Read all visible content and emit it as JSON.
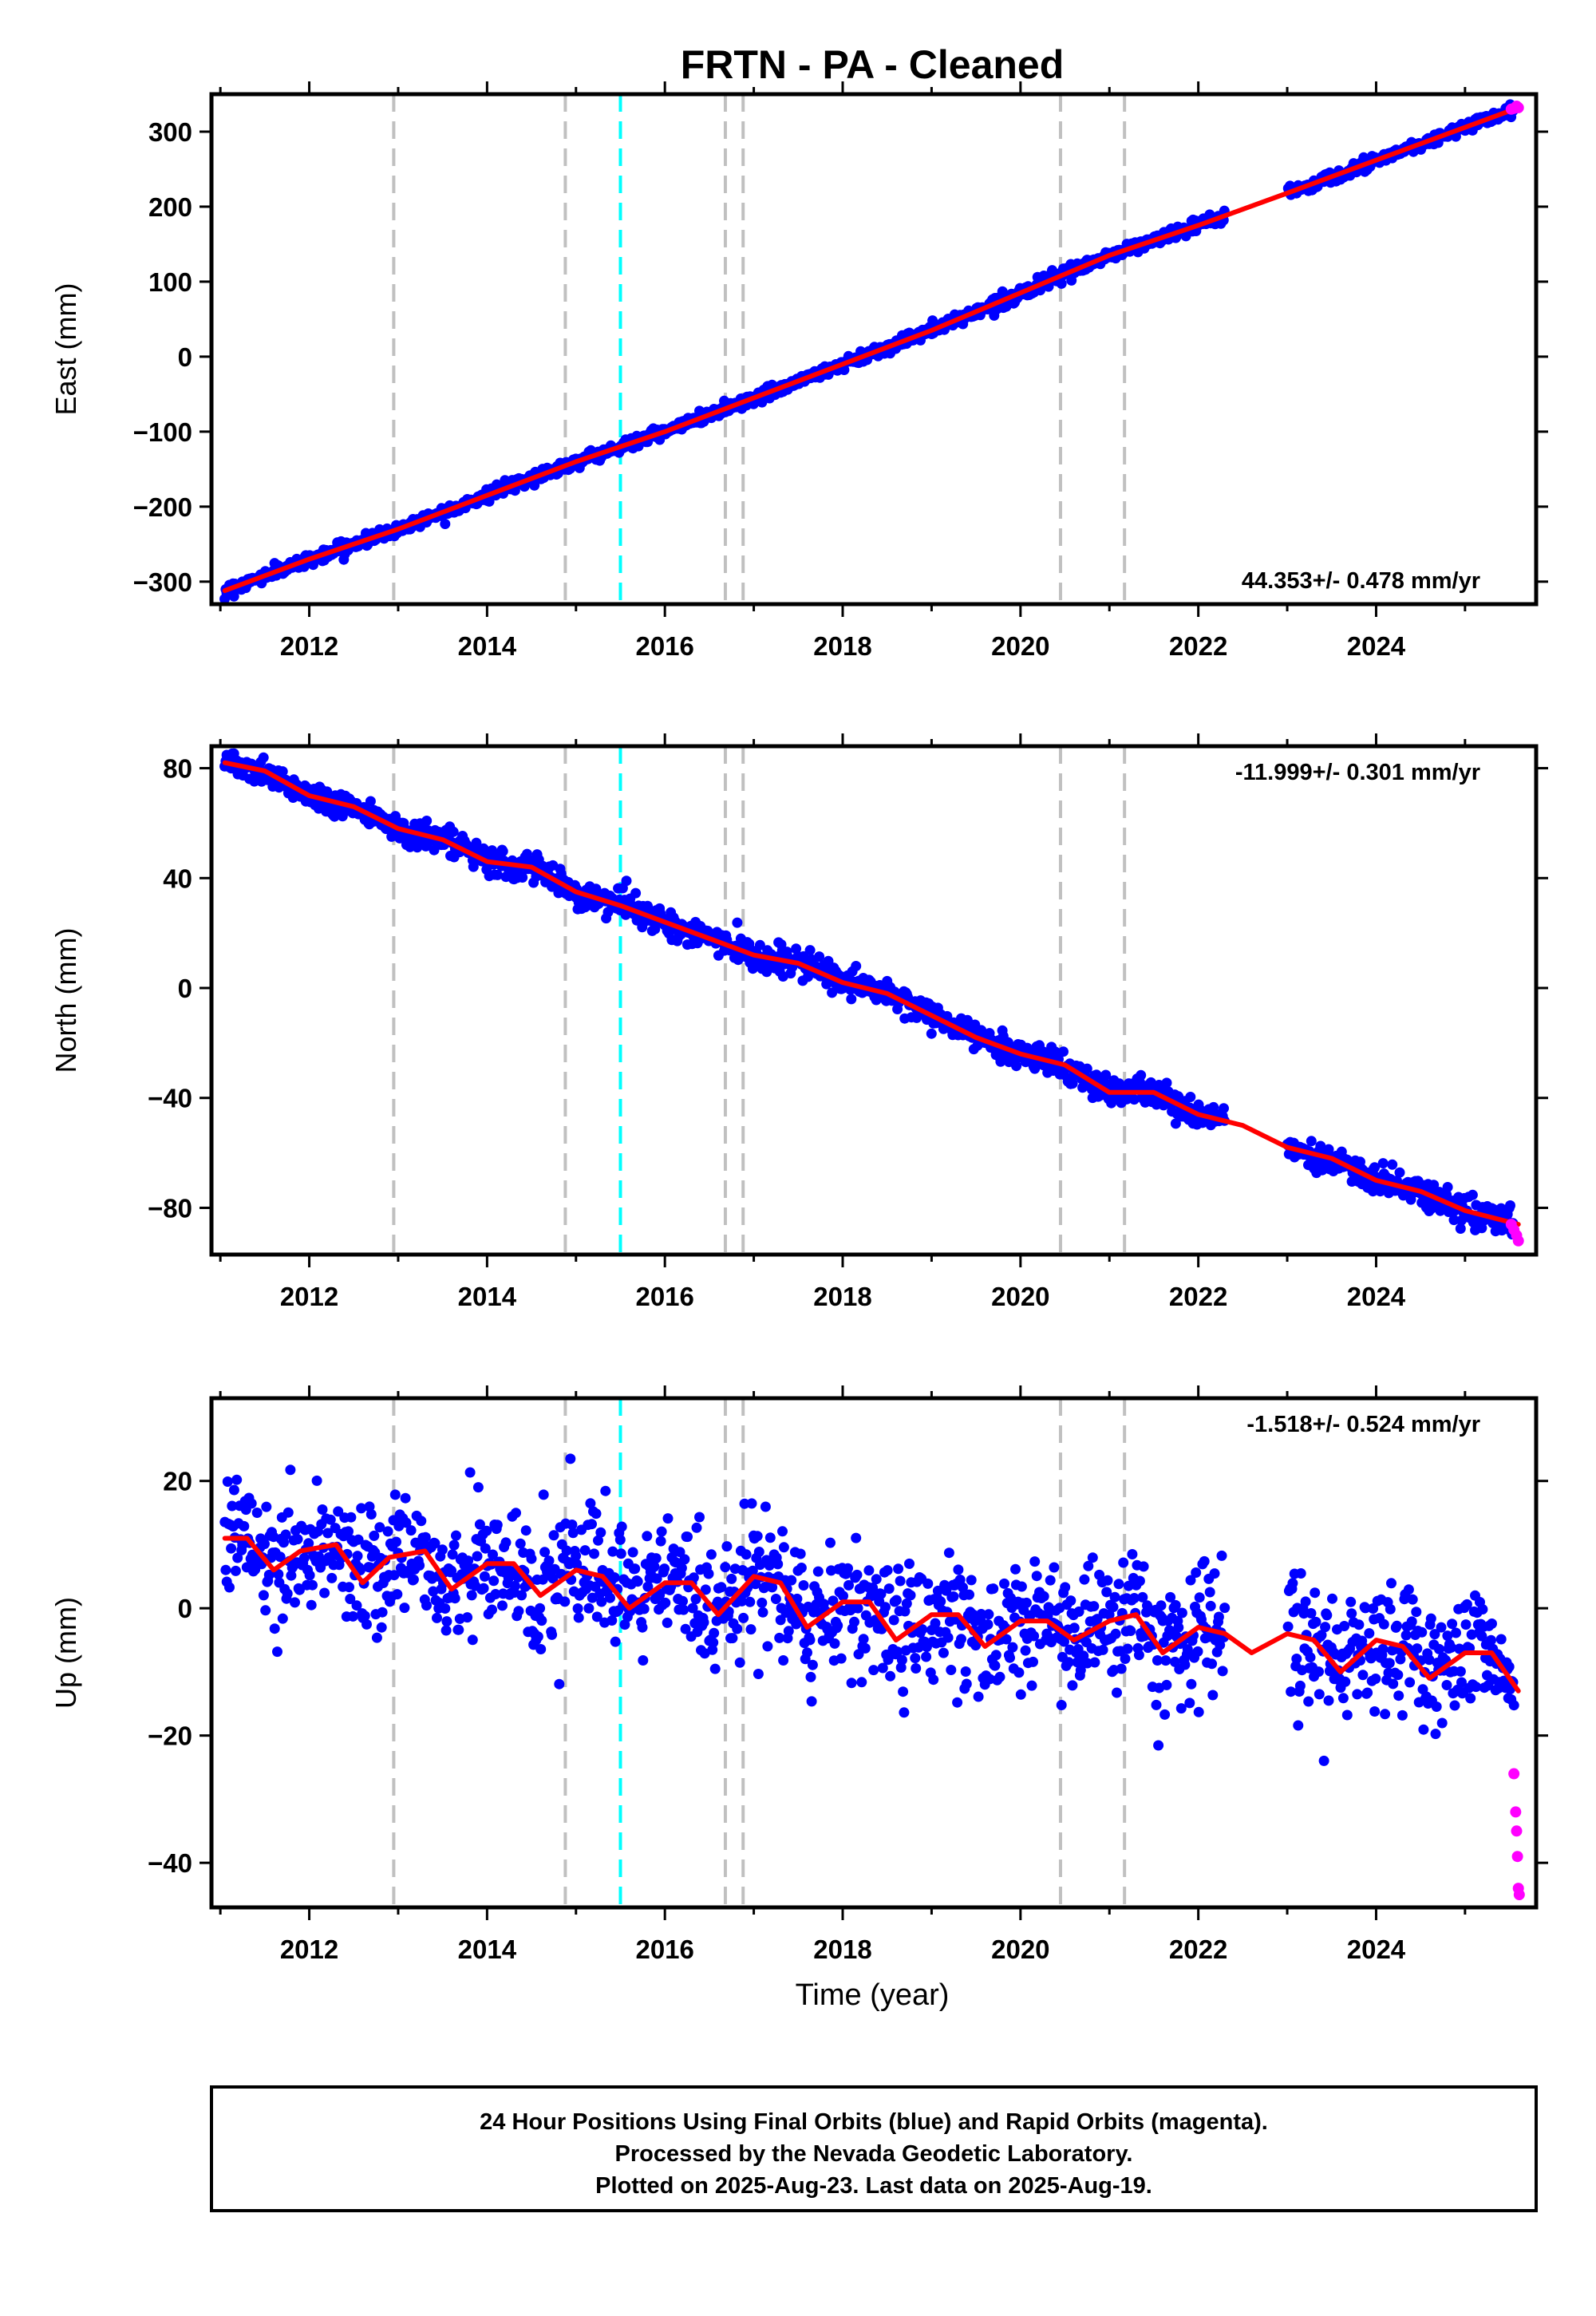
{
  "title": "FRTN  - PA - Cleaned",
  "footer": {
    "lines": [
      "24 Hour Positions Using Final Orbits (blue) and Rapid Orbits (magenta).",
      "Processed by the Nevada Geodetic Laboratory.",
      "Plotted on 2025-Aug-23. Last data on 2025-Aug-19."
    ]
  },
  "colors": {
    "final_orbits": "#0000ff",
    "rapid_orbits": "#ff00ff",
    "model_fit": "#ff0000",
    "equipment_change_line": "#c0c0c0",
    "earthquake_line": "#00ffff"
  },
  "chart_data": [
    {
      "type": "scatter",
      "ylabel": "East (mm)",
      "xlabel": "",
      "xlim": [
        2010.9,
        2025.8
      ],
      "ylim": [
        -330,
        350
      ],
      "xticks": [
        2012,
        2014,
        2016,
        2018,
        2020,
        2022,
        2024
      ],
      "yticks": [
        -300,
        -200,
        -100,
        0,
        100,
        200,
        300
      ],
      "rate_label": "44.353+/- 0.478 mm/yr",
      "rate_position": "bottom-right",
      "series": [
        {
          "role": "final_orbits",
          "style": "points",
          "trend": {
            "x": [
              2011.05,
              2025.55
            ],
            "y": [
              -312,
              330
            ]
          },
          "scatter_mm": 4,
          "gaps": [
            [
              2022.3,
              2023.0
            ]
          ]
        },
        {
          "role": "rapid_orbits",
          "style": "points",
          "x": [
            2025.52,
            2025.55,
            2025.58,
            2025.6
          ],
          "y": [
            330,
            331,
            334,
            332
          ]
        },
        {
          "role": "model_fit",
          "style": "line",
          "x": [
            2011.05,
            2012.0,
            2013.0,
            2014.0,
            2015.0,
            2016.0,
            2017.0,
            2018.0,
            2019.0,
            2020.0,
            2021.0,
            2022.0,
            2023.0,
            2024.0,
            2025.6
          ],
          "y": [
            -312,
            -270,
            -230,
            -185,
            -140,
            -100,
            -55,
            -10,
            35,
            85,
            135,
            175,
            218,
            262,
            332
          ]
        }
      ]
    },
    {
      "type": "scatter",
      "ylabel": "North (mm)",
      "xlabel": "",
      "xlim": [
        2010.9,
        2025.8
      ],
      "ylim": [
        -97,
        88
      ],
      "xticks": [
        2012,
        2014,
        2016,
        2018,
        2020,
        2022,
        2024
      ],
      "yticks": [
        -80,
        -40,
        0,
        40,
        80
      ],
      "rate_label": "-11.999+/- 0.301 mm/yr",
      "rate_position": "top-right",
      "series": [
        {
          "role": "final_orbits",
          "style": "points",
          "trend": {
            "x": [
              2011.05,
              2025.55
            ],
            "y": [
              82,
              -87
            ]
          },
          "scatter_mm": 2.5,
          "gaps": [
            [
              2022.3,
              2023.0
            ]
          ]
        },
        {
          "role": "rapid_orbits",
          "style": "points",
          "x": [
            2025.52,
            2025.55,
            2025.58,
            2025.6
          ],
          "y": [
            -86,
            -88,
            -90,
            -92
          ]
        },
        {
          "role": "model_fit",
          "style": "line",
          "x": [
            2011.05,
            2011.5,
            2012.0,
            2012.5,
            2013.0,
            2013.5,
            2014.0,
            2014.5,
            2015.0,
            2015.5,
            2016.0,
            2016.5,
            2017.0,
            2017.5,
            2018.0,
            2018.5,
            2019.0,
            2019.5,
            2020.0,
            2020.5,
            2021.0,
            2021.5,
            2022.0,
            2022.5,
            2023.0,
            2023.5,
            2024.0,
            2024.5,
            2025.0,
            2025.6
          ],
          "y": [
            82,
            79,
            70,
            66,
            58,
            54,
            46,
            44,
            35,
            30,
            24,
            18,
            12,
            9,
            2,
            -2,
            -10,
            -18,
            -24,
            -28,
            -38,
            -38,
            -46,
            -50,
            -58,
            -62,
            -70,
            -74,
            -81,
            -86
          ]
        }
      ]
    },
    {
      "type": "scatter",
      "ylabel": "Up (mm)",
      "xlabel": "Time (year)",
      "xlim": [
        2010.9,
        2025.8
      ],
      "ylim": [
        -47,
        33
      ],
      "xticks": [
        2012,
        2014,
        2016,
        2018,
        2020,
        2022,
        2024
      ],
      "yticks": [
        -40,
        -20,
        0,
        20
      ],
      "rate_label": "-1.518+/- 0.524 mm/yr",
      "rate_position": "top-right",
      "series": [
        {
          "role": "final_orbits",
          "style": "points",
          "trend": {
            "x": [
              2011.05,
              2025.55
            ],
            "y": [
              9,
              -13
            ]
          },
          "scatter_mm": 5,
          "gaps": [
            [
              2022.3,
              2023.0
            ]
          ]
        },
        {
          "role": "rapid_orbits",
          "style": "points",
          "x": [
            2025.55,
            2025.57,
            2025.58,
            2025.59,
            2025.6,
            2025.61
          ],
          "y": [
            -26,
            -32,
            -35,
            -39,
            -44,
            -45
          ]
        },
        {
          "role": "model_fit",
          "style": "line",
          "x": [
            2011.05,
            2011.3,
            2011.6,
            2011.9,
            2012.3,
            2012.6,
            2012.9,
            2013.3,
            2013.6,
            2014.0,
            2014.3,
            2014.6,
            2015.0,
            2015.3,
            2015.6,
            2016.0,
            2016.3,
            2016.6,
            2017.0,
            2017.3,
            2017.6,
            2018.0,
            2018.3,
            2018.6,
            2019.0,
            2019.3,
            2019.6,
            2020.0,
            2020.3,
            2020.6,
            2021.0,
            2021.3,
            2021.6,
            2022.0,
            2022.3,
            2022.6,
            2023.0,
            2023.3,
            2023.6,
            2024.0,
            2024.3,
            2024.6,
            2025.0,
            2025.3,
            2025.6
          ],
          "y": [
            11,
            11,
            6,
            9,
            10,
            4,
            8,
            9,
            3,
            7,
            7,
            2,
            6,
            5,
            0,
            4,
            4,
            -1,
            5,
            4,
            -3,
            1,
            1,
            -5,
            -1,
            -1,
            -6,
            -2,
            -2,
            -5,
            -2,
            -1,
            -7,
            -3,
            -4,
            -7,
            -4,
            -5,
            -10,
            -5,
            -6,
            -11,
            -7,
            -7,
            -13
          ]
        }
      ]
    }
  ],
  "vertical_markers": {
    "equipment_change": [
      2012.95,
      2014.88,
      2016.68,
      2016.88,
      2020.45,
      2021.17
    ],
    "earthquake": [
      2015.5
    ]
  }
}
